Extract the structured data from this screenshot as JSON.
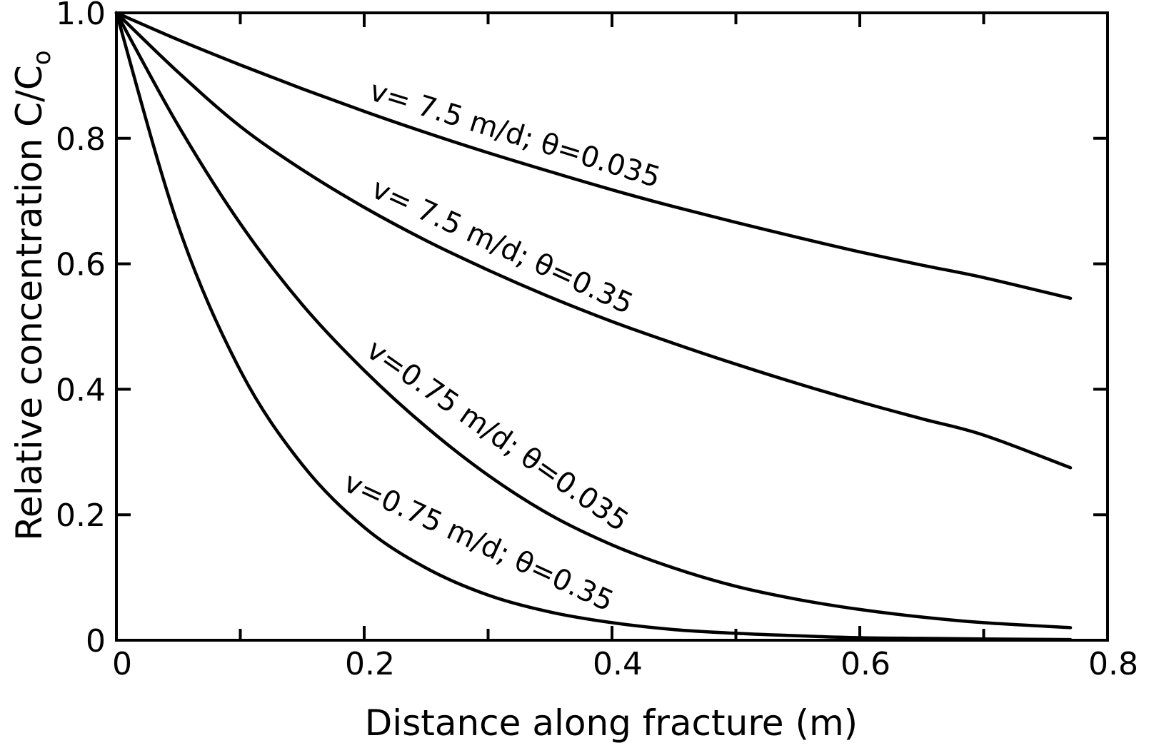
{
  "chart_data": {
    "type": "line",
    "xlabel": "Distance along fracture (m)",
    "ylabel": "Relative concentration C/C",
    "ylabel_subscript": "o",
    "xlim": [
      0,
      0.8
    ],
    "ylim": [
      0,
      1.0
    ],
    "x_ticks": [
      0,
      0.2,
      0.4,
      0.6,
      0.8
    ],
    "x_tick_labels": [
      "0",
      "0.2",
      "0.4",
      "0.6",
      "0.8"
    ],
    "x_minor_ticks": [
      0.1,
      0.3,
      0.5,
      0.7
    ],
    "y_ticks": [
      0,
      0.2,
      0.4,
      0.6,
      0.8,
      1.0
    ],
    "y_tick_labels": [
      "0",
      "0.2",
      "0.4",
      "0.6",
      "0.8",
      "1.0"
    ],
    "grid": false,
    "legend": "none",
    "series": [
      {
        "name": "v= 7.5 m/d; θ=0.035",
        "x": [
          0,
          0.05,
          0.1,
          0.15,
          0.2,
          0.25,
          0.3,
          0.35,
          0.4,
          0.45,
          0.5,
          0.55,
          0.6,
          0.65,
          0.7,
          0.77
        ],
        "y": [
          1.0,
          0.957,
          0.917,
          0.879,
          0.843,
          0.809,
          0.777,
          0.747,
          0.718,
          0.691,
          0.666,
          0.642,
          0.619,
          0.598,
          0.578,
          0.545
        ]
      },
      {
        "name": "v= 7.5 m/d; θ=0.35",
        "x": [
          0,
          0.05,
          0.1,
          0.15,
          0.2,
          0.25,
          0.3,
          0.35,
          0.4,
          0.45,
          0.5,
          0.55,
          0.6,
          0.65,
          0.7,
          0.77
        ],
        "y": [
          1.0,
          0.905,
          0.819,
          0.75,
          0.69,
          0.637,
          0.59,
          0.547,
          0.508,
          0.473,
          0.44,
          0.409,
          0.38,
          0.353,
          0.327,
          0.275
        ]
      },
      {
        "name": "v=0.75 m/d; θ=0.035",
        "x": [
          0,
          0.05,
          0.1,
          0.15,
          0.2,
          0.25,
          0.3,
          0.35,
          0.4,
          0.45,
          0.5,
          0.55,
          0.6,
          0.65,
          0.7,
          0.77
        ],
        "y": [
          1.0,
          0.82,
          0.664,
          0.535,
          0.43,
          0.34,
          0.263,
          0.2,
          0.152,
          0.115,
          0.086,
          0.065,
          0.049,
          0.037,
          0.028,
          0.02
        ]
      },
      {
        "name": "v=0.75 m/d; θ=0.35",
        "x": [
          0,
          0.05,
          0.1,
          0.15,
          0.2,
          0.25,
          0.3,
          0.35,
          0.4,
          0.45,
          0.5,
          0.55,
          0.6,
          0.65,
          0.7,
          0.77
        ],
        "y": [
          1.0,
          0.66,
          0.43,
          0.28,
          0.18,
          0.115,
          0.072,
          0.045,
          0.028,
          0.017,
          0.011,
          0.007,
          0.004,
          0.003,
          0.002,
          0.001
        ]
      }
    ]
  }
}
